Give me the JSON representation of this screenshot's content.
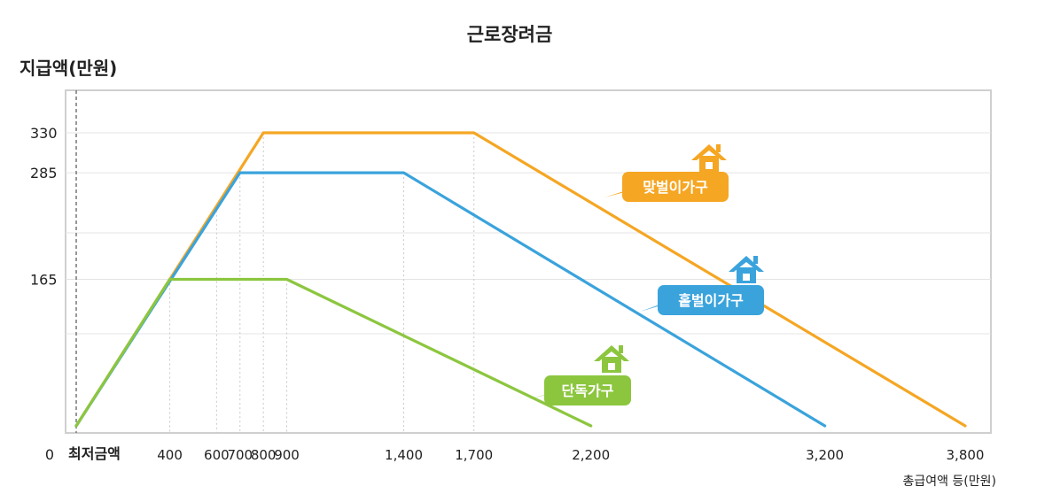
{
  "chart_data": {
    "type": "line",
    "title": "근로장려금",
    "ylabel": "지급액(만원)",
    "xlabel": "총급여액 등(만원)",
    "x_ticks": [
      {
        "value": 0,
        "label": "최저금액"
      },
      {
        "value": 400,
        "label": "400"
      },
      {
        "value": 600,
        "label": "600"
      },
      {
        "value": 700,
        "label": "700"
      },
      {
        "value": 800,
        "label": "800"
      },
      {
        "value": 900,
        "label": "900"
      },
      {
        "value": 1400,
        "label": "1,400"
      },
      {
        "value": 1700,
        "label": "1,700"
      },
      {
        "value": 2200,
        "label": "2,200"
      },
      {
        "value": 3200,
        "label": "3,200"
      },
      {
        "value": 3800,
        "label": "3,800"
      }
    ],
    "y_ticks": [
      {
        "value": 0,
        "label": "0"
      },
      {
        "value": 165,
        "label": "165"
      },
      {
        "value": 285,
        "label": "285"
      },
      {
        "value": 330,
        "label": "330"
      }
    ],
    "xlim": [
      0,
      3800
    ],
    "ylim": [
      0,
      370
    ],
    "grid": true,
    "series": [
      {
        "name": "맞벌이가구",
        "color": "#f5a623",
        "points": [
          [
            0,
            0
          ],
          [
            800,
            330
          ],
          [
            1700,
            330
          ],
          [
            3800,
            0
          ]
        ]
      },
      {
        "name": "홑벌이가구",
        "color": "#3aa3dc",
        "points": [
          [
            0,
            0
          ],
          [
            700,
            285
          ],
          [
            1400,
            285
          ],
          [
            3200,
            0
          ]
        ]
      },
      {
        "name": "단독가구",
        "color": "#8cc63f",
        "points": [
          [
            0,
            0
          ],
          [
            400,
            165
          ],
          [
            900,
            165
          ],
          [
            2200,
            0
          ]
        ]
      }
    ]
  }
}
